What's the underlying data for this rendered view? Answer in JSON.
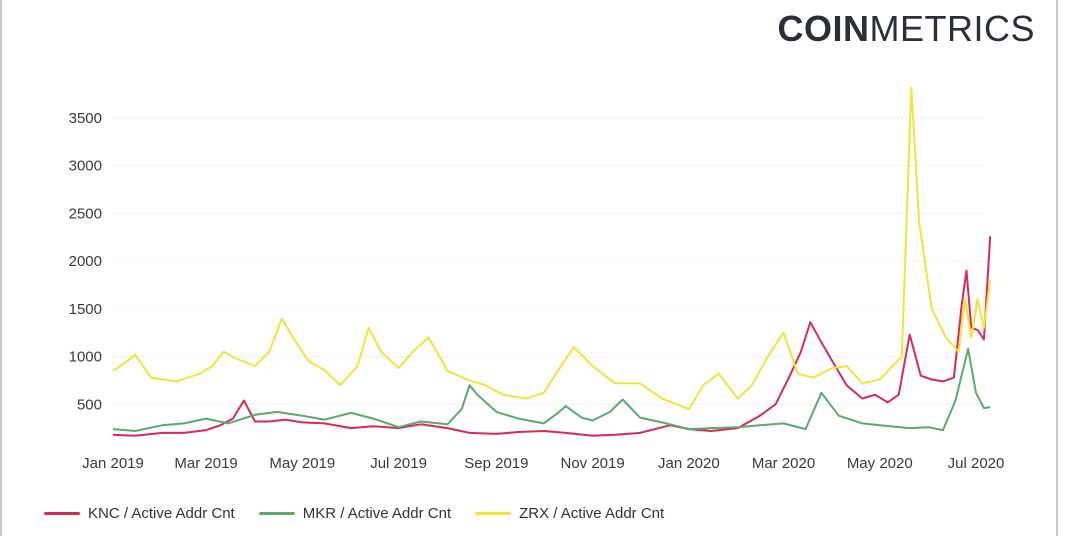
{
  "brand": {
    "bold": "COIN",
    "light": "METRICS"
  },
  "colors": {
    "knc": "#d62b57",
    "mkr": "#5aab6a",
    "zrx": "#f2e43a",
    "grid": "#e3e3e3",
    "text": "#3a3a3a"
  },
  "chart_data": {
    "type": "line",
    "title": "",
    "xlabel": "",
    "ylabel": "",
    "ylim": [
      0,
      3800
    ],
    "yticks": [
      500,
      1000,
      1500,
      2000,
      2500,
      3000,
      3500
    ],
    "xlim": [
      "2019-01-01",
      "2020-07-10"
    ],
    "xticks": [
      {
        "date": "2019-01-01",
        "label": "Jan 2019"
      },
      {
        "date": "2019-03-01",
        "label": "Mar 2019"
      },
      {
        "date": "2019-05-01",
        "label": "May 2019"
      },
      {
        "date": "2019-07-01",
        "label": "Jul 2019"
      },
      {
        "date": "2019-09-01",
        "label": "Sep 2019"
      },
      {
        "date": "2019-11-01",
        "label": "Nov 2019"
      },
      {
        "date": "2020-01-01",
        "label": "Jan 2020"
      },
      {
        "date": "2020-03-01",
        "label": "Mar 2020"
      },
      {
        "date": "2020-05-01",
        "label": "May 2020"
      },
      {
        "date": "2020-07-01",
        "label": "Jul 2020"
      }
    ],
    "grid": "horizontal",
    "legend_position": "bottom",
    "series": [
      {
        "name": "KNC / Active Addr Cnt",
        "color": "#d62b57",
        "points": [
          [
            "2019-01-01",
            180
          ],
          [
            "2019-01-15",
            170
          ],
          [
            "2019-02-01",
            200
          ],
          [
            "2019-02-15",
            200
          ],
          [
            "2019-03-01",
            230
          ],
          [
            "2019-03-10",
            280
          ],
          [
            "2019-03-18",
            350
          ],
          [
            "2019-03-25",
            540
          ],
          [
            "2019-04-01",
            320
          ],
          [
            "2019-04-10",
            320
          ],
          [
            "2019-04-20",
            340
          ],
          [
            "2019-05-01",
            310
          ],
          [
            "2019-05-15",
            300
          ],
          [
            "2019-06-01",
            250
          ],
          [
            "2019-06-15",
            270
          ],
          [
            "2019-07-01",
            250
          ],
          [
            "2019-07-15",
            290
          ],
          [
            "2019-08-01",
            250
          ],
          [
            "2019-08-15",
            200
          ],
          [
            "2019-09-01",
            190
          ],
          [
            "2019-09-15",
            210
          ],
          [
            "2019-10-01",
            220
          ],
          [
            "2019-10-15",
            200
          ],
          [
            "2019-11-01",
            170
          ],
          [
            "2019-11-15",
            180
          ],
          [
            "2019-12-01",
            200
          ],
          [
            "2019-12-20",
            280
          ],
          [
            "2020-01-01",
            240
          ],
          [
            "2020-01-15",
            220
          ],
          [
            "2020-02-01",
            250
          ],
          [
            "2020-02-15",
            380
          ],
          [
            "2020-02-25",
            500
          ],
          [
            "2020-03-05",
            800
          ],
          [
            "2020-03-12",
            1050
          ],
          [
            "2020-03-18",
            1360
          ],
          [
            "2020-03-25",
            1150
          ],
          [
            "2020-04-01",
            950
          ],
          [
            "2020-04-10",
            700
          ],
          [
            "2020-04-20",
            560
          ],
          [
            "2020-04-28",
            600
          ],
          [
            "2020-05-06",
            520
          ],
          [
            "2020-05-13",
            600
          ],
          [
            "2020-05-20",
            1230
          ],
          [
            "2020-05-27",
            800
          ],
          [
            "2020-06-03",
            760
          ],
          [
            "2020-06-10",
            740
          ],
          [
            "2020-06-17",
            780
          ],
          [
            "2020-06-22",
            1550
          ],
          [
            "2020-06-25",
            1900
          ],
          [
            "2020-06-28",
            1300
          ],
          [
            "2020-07-02",
            1280
          ],
          [
            "2020-07-06",
            1180
          ],
          [
            "2020-07-10",
            2260
          ]
        ]
      },
      {
        "name": "MKR / Active Addr Cnt",
        "color": "#5aab6a",
        "points": [
          [
            "2019-01-01",
            240
          ],
          [
            "2019-01-15",
            220
          ],
          [
            "2019-02-01",
            280
          ],
          [
            "2019-02-15",
            300
          ],
          [
            "2019-03-01",
            350
          ],
          [
            "2019-03-15",
            300
          ],
          [
            "2019-04-01",
            390
          ],
          [
            "2019-04-15",
            420
          ],
          [
            "2019-05-01",
            380
          ],
          [
            "2019-05-15",
            340
          ],
          [
            "2019-06-01",
            410
          ],
          [
            "2019-06-15",
            350
          ],
          [
            "2019-07-01",
            260
          ],
          [
            "2019-07-15",
            320
          ],
          [
            "2019-08-01",
            290
          ],
          [
            "2019-08-10",
            450
          ],
          [
            "2019-08-15",
            700
          ],
          [
            "2019-08-20",
            600
          ],
          [
            "2019-09-01",
            420
          ],
          [
            "2019-09-15",
            350
          ],
          [
            "2019-10-01",
            300
          ],
          [
            "2019-10-10",
            410
          ],
          [
            "2019-10-15",
            480
          ],
          [
            "2019-10-25",
            360
          ],
          [
            "2019-11-01",
            330
          ],
          [
            "2019-11-12",
            420
          ],
          [
            "2019-11-20",
            550
          ],
          [
            "2019-12-01",
            360
          ],
          [
            "2019-12-15",
            310
          ],
          [
            "2020-01-01",
            240
          ],
          [
            "2020-01-15",
            250
          ],
          [
            "2020-02-01",
            260
          ],
          [
            "2020-02-15",
            280
          ],
          [
            "2020-03-01",
            300
          ],
          [
            "2020-03-15",
            240
          ],
          [
            "2020-03-25",
            620
          ],
          [
            "2020-04-05",
            380
          ],
          [
            "2020-04-20",
            300
          ],
          [
            "2020-05-01",
            280
          ],
          [
            "2020-05-20",
            250
          ],
          [
            "2020-06-01",
            260
          ],
          [
            "2020-06-10",
            230
          ],
          [
            "2020-06-18",
            540
          ],
          [
            "2020-06-26",
            1080
          ],
          [
            "2020-07-01",
            620
          ],
          [
            "2020-07-06",
            460
          ],
          [
            "2020-07-10",
            470
          ]
        ]
      },
      {
        "name": "ZRX / Active Addr Cnt",
        "color": "#f2e43a",
        "points": [
          [
            "2019-01-01",
            850
          ],
          [
            "2019-01-10",
            950
          ],
          [
            "2019-01-15",
            1020
          ],
          [
            "2019-01-25",
            780
          ],
          [
            "2019-02-10",
            740
          ],
          [
            "2019-02-25",
            820
          ],
          [
            "2019-03-05",
            900
          ],
          [
            "2019-03-12",
            1050
          ],
          [
            "2019-03-20",
            980
          ],
          [
            "2019-04-01",
            900
          ],
          [
            "2019-04-10",
            1050
          ],
          [
            "2019-04-18",
            1400
          ],
          [
            "2019-04-25",
            1200
          ],
          [
            "2019-05-05",
            950
          ],
          [
            "2019-05-15",
            860
          ],
          [
            "2019-05-25",
            700
          ],
          [
            "2019-06-05",
            900
          ],
          [
            "2019-06-12",
            1300
          ],
          [
            "2019-06-20",
            1050
          ],
          [
            "2019-07-01",
            880
          ],
          [
            "2019-07-10",
            1050
          ],
          [
            "2019-07-20",
            1200
          ],
          [
            "2019-08-01",
            850
          ],
          [
            "2019-08-15",
            750
          ],
          [
            "2019-08-25",
            700
          ],
          [
            "2019-09-05",
            600
          ],
          [
            "2019-09-20",
            560
          ],
          [
            "2019-10-01",
            620
          ],
          [
            "2019-10-10",
            850
          ],
          [
            "2019-10-20",
            1100
          ],
          [
            "2019-11-01",
            900
          ],
          [
            "2019-11-15",
            720
          ],
          [
            "2019-12-01",
            720
          ],
          [
            "2019-12-15",
            560
          ],
          [
            "2020-01-01",
            450
          ],
          [
            "2020-01-10",
            700
          ],
          [
            "2020-01-20",
            820
          ],
          [
            "2020-02-01",
            560
          ],
          [
            "2020-02-10",
            700
          ],
          [
            "2020-02-20",
            1000
          ],
          [
            "2020-03-01",
            1250
          ],
          [
            "2020-03-10",
            820
          ],
          [
            "2020-03-20",
            780
          ],
          [
            "2020-04-01",
            880
          ],
          [
            "2020-04-10",
            900
          ],
          [
            "2020-04-20",
            720
          ],
          [
            "2020-05-01",
            760
          ],
          [
            "2020-05-08",
            880
          ],
          [
            "2020-05-15",
            1000
          ],
          [
            "2020-05-21",
            3820
          ],
          [
            "2020-05-26",
            2400
          ],
          [
            "2020-06-03",
            1500
          ],
          [
            "2020-06-12",
            1200
          ],
          [
            "2020-06-20",
            1050
          ],
          [
            "2020-06-24",
            1600
          ],
          [
            "2020-06-28",
            1200
          ],
          [
            "2020-07-02",
            1600
          ],
          [
            "2020-07-06",
            1300
          ],
          [
            "2020-07-10",
            1800
          ]
        ]
      }
    ]
  }
}
